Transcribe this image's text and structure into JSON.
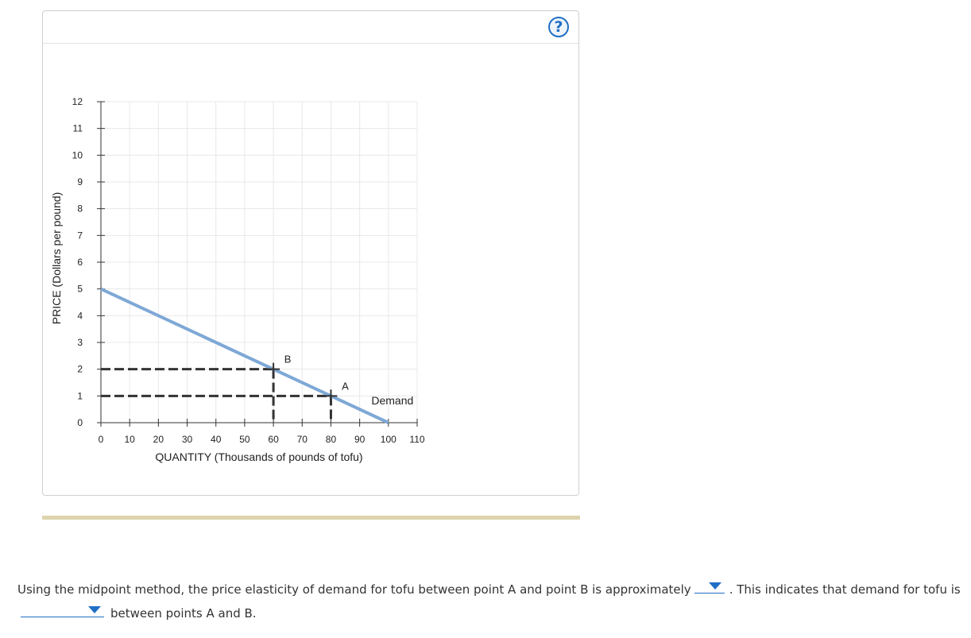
{
  "help": {
    "label": "?"
  },
  "chart_data": {
    "type": "line",
    "title": "",
    "xlabel": "QUANTITY (Thousands of pounds of tofu)",
    "ylabel": "PRICE (Dollars per pound)",
    "xlim": [
      0,
      110
    ],
    "ylim": [
      0,
      12
    ],
    "x_ticks": [
      0,
      10,
      20,
      30,
      40,
      50,
      60,
      70,
      80,
      90,
      100,
      110
    ],
    "y_ticks": [
      0,
      1,
      2,
      3,
      4,
      5,
      6,
      7,
      8,
      9,
      10,
      11,
      12
    ],
    "grid": true,
    "series": [
      {
        "name": "Demand",
        "color": "#7ea8d6",
        "x": [
          0,
          100
        ],
        "y": [
          5,
          0
        ]
      }
    ],
    "points": [
      {
        "label": "B",
        "x": 60,
        "y": 2
      },
      {
        "label": "A",
        "x": 80,
        "y": 1
      }
    ]
  },
  "question": {
    "part1": "Using the midpoint method, the price elasticity of demand for tofu between point A and point B is approximately",
    "part2": ". This indicates that demand for tofu is",
    "part3": "between points A and B.",
    "dropdown1_value": "",
    "dropdown2_value": ""
  }
}
